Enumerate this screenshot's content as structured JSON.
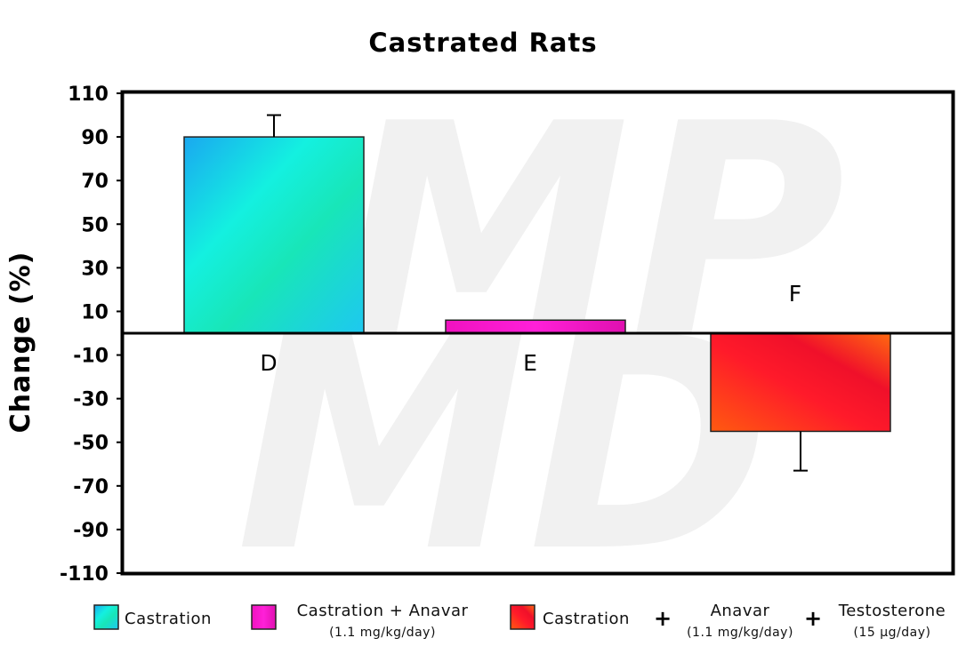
{
  "chart_data": {
    "type": "bar",
    "title": "Castrated Rats",
    "ylabel": "Change (%)",
    "ylim": [
      -110,
      110
    ],
    "yticks": [
      110,
      90,
      70,
      50,
      30,
      10,
      -10,
      -30,
      -50,
      -70,
      -90,
      -110
    ],
    "grid": false,
    "bar_labels": [
      "D",
      "E",
      "F"
    ],
    "values": [
      90,
      6,
      -45
    ],
    "errors": [
      10,
      0,
      18
    ],
    "colors": [
      "#1fe6d4",
      "#ee18c8",
      "#ff2a2a"
    ],
    "legend": [
      {
        "parts": [
          {
            "text": "Castration"
          }
        ],
        "color": "#1fe6d4"
      },
      {
        "parts": [
          {
            "text": "Castration + Anavar",
            "sub": "(1.1 mg/kg/day)"
          }
        ],
        "color": "#ee18c8"
      },
      {
        "parts": [
          {
            "text": "Castration"
          },
          {
            "text": "Anavar",
            "sub": "(1.1 mg/kg/day)"
          },
          {
            "text": "Testosterone",
            "sub": "(15 µg/day)"
          }
        ],
        "color": "#ff2a2a",
        "joiner": "+"
      }
    ],
    "legend_position": "bottom"
  },
  "watermark": {
    "line1": "MP",
    "line2": "MD"
  }
}
